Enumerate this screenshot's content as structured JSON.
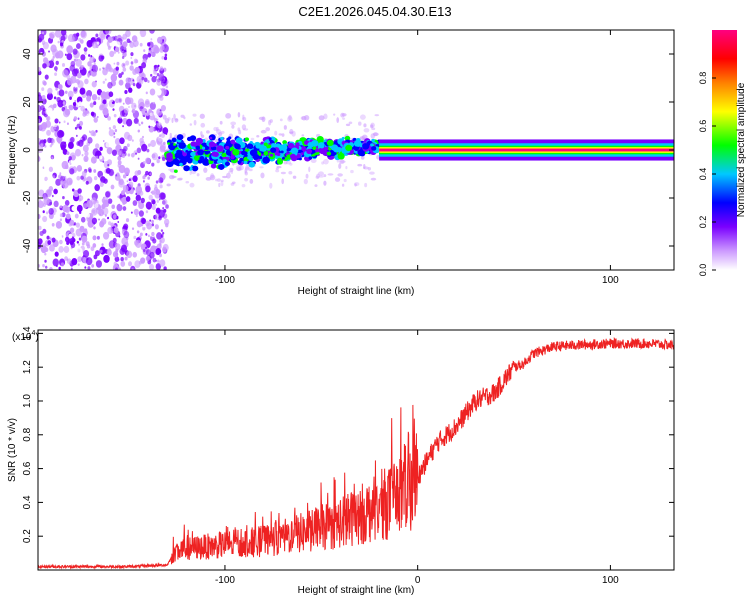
{
  "title": "C2E1.2026.045.04.30.E13",
  "chart_data": [
    {
      "type": "heatmap",
      "title": "C2E1.2026.045.04.30.E13",
      "xlabel": "Height of straight line (km)",
      "ylabel": "Frequency (Hz)",
      "xlim": [
        -197,
        133
      ],
      "ylim": [
        -50,
        50
      ],
      "x_ticks": [
        -100,
        0,
        100
      ],
      "x_tick_labels": [
        "-100",
        "",
        "100"
      ],
      "y_ticks": [
        40,
        20,
        0,
        -20,
        -40
      ],
      "y_tick_labels": [
        "40",
        "20",
        "0",
        "-20",
        "-40"
      ],
      "colorbar": {
        "label": "Normalized spectral amplitude",
        "range": [
          0,
          1
        ],
        "ticks": [
          0.0,
          0.2,
          0.4,
          0.6,
          0.8
        ],
        "tick_labels": [
          "0.0",
          "0.2",
          "0.4",
          "0.6",
          "0.8"
        ],
        "colormap": [
          "#ffffff",
          "#cc99ff",
          "#7a00ff",
          "#0000ff",
          "#00c8ff",
          "#00ff00",
          "#ffff00",
          "#ff8000",
          "#ff0000",
          "#ff0080"
        ]
      },
      "regions": [
        {
          "name": "noise",
          "x_range": [
            -197,
            -130
          ],
          "y_range": [
            -50,
            50
          ],
          "amplitude": 0.15
        },
        {
          "name": "spread signal",
          "x_range": [
            -130,
            -20
          ],
          "center_freq_hz": 0,
          "width_hz": 8,
          "amplitude": 0.4
        },
        {
          "name": "narrow line",
          "x_range": [
            -20,
            133
          ],
          "center_freq_hz": 0,
          "width_hz": 2,
          "amplitude": 0.95
        }
      ]
    },
    {
      "type": "line",
      "xlabel": "Height of straight line (km)",
      "ylabel": "SNR (10 * v/v)",
      "y_multiplier_label": "(x10",
      "y_multiplier_exp": "4",
      "xlim": [
        -197,
        133
      ],
      "ylim": [
        0,
        1.42
      ],
      "x_ticks": [
        -100,
        0,
        100
      ],
      "x_tick_labels": [
        "-100",
        "0",
        "100"
      ],
      "y_ticks": [
        0.2,
        0.4,
        0.6,
        0.8,
        1.0,
        1.2,
        1.4
      ],
      "y_tick_labels": [
        "0.2",
        "0.4",
        "0.6",
        "0.8",
        "1.0",
        "1.2",
        "1.4"
      ],
      "color": "#ee2222",
      "series": [
        {
          "name": "SNR",
          "x": [
            -197,
            -150,
            -130,
            -125,
            -100,
            -80,
            -60,
            -40,
            -25,
            -15,
            -10,
            0,
            10,
            20,
            30,
            40,
            50,
            55,
            60,
            70,
            80,
            100,
            120,
            133
          ],
          "y": [
            0.02,
            0.02,
            0.03,
            0.12,
            0.15,
            0.17,
            0.22,
            0.28,
            0.35,
            0.4,
            0.45,
            0.55,
            0.75,
            0.85,
            1.0,
            1.05,
            1.2,
            1.22,
            1.28,
            1.32,
            1.33,
            1.34,
            1.34,
            1.33
          ]
        }
      ]
    }
  ]
}
